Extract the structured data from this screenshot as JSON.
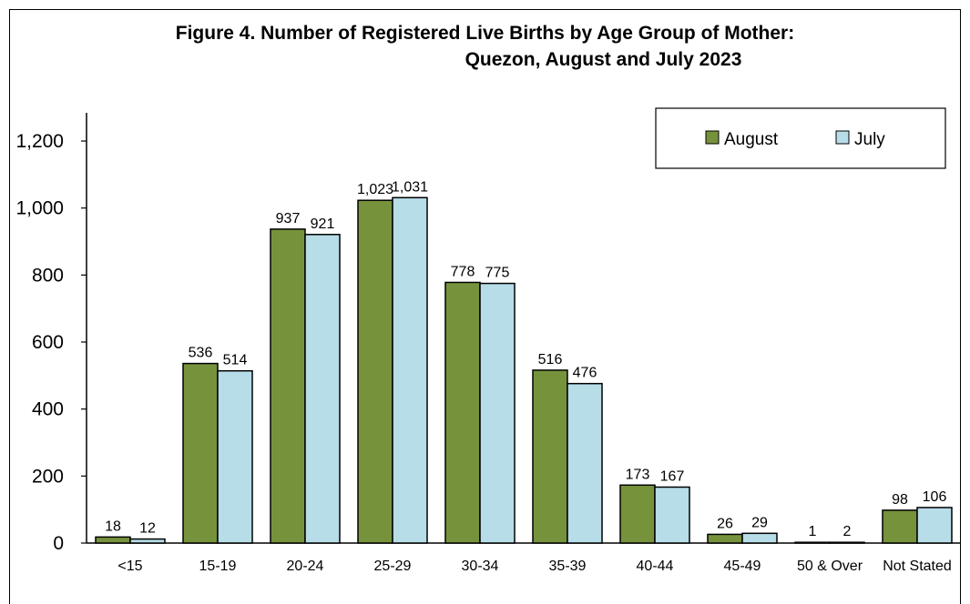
{
  "title_line1": "Figure 4. Number of Registered Live Births by Age Group of Mother:",
  "title_line2": "Quezon, August and July 2023",
  "colors": {
    "August": "#76933c",
    "July": "#b7dde8",
    "outline": "#000000"
  },
  "chart_data": {
    "type": "bar",
    "title": "Figure 4. Number of Registered Live Births by Age Group of Mother: Quezon, August and July 2023",
    "xlabel": "",
    "ylabel": "",
    "categories": [
      "<15",
      "15-19",
      "20-24",
      "25-29",
      "30-34",
      "35-39",
      "40-44",
      "45-49",
      "50 & Over",
      "Not Stated"
    ],
    "series": [
      {
        "name": "August",
        "values": [
          18,
          536,
          937,
          1023,
          778,
          516,
          173,
          26,
          1,
          98
        ]
      },
      {
        "name": "July",
        "values": [
          12,
          514,
          921,
          1031,
          775,
          476,
          167,
          29,
          2,
          106
        ]
      }
    ],
    "data_labels": {
      "August": [
        "18",
        "536",
        "937",
        "1,023",
        "778",
        "516",
        "173",
        "26",
        "1",
        "98"
      ],
      "July": [
        "12",
        "514",
        "921",
        "1,031",
        "775",
        "476",
        "167",
        "29",
        "2",
        "106"
      ]
    },
    "yticks": [
      0,
      200,
      400,
      600,
      800,
      1000,
      1200
    ],
    "ytick_labels": [
      "0",
      "200",
      "400",
      "600",
      "800",
      "1,000",
      "1,200"
    ],
    "ylim": [
      0,
      1300
    ],
    "grid": false,
    "legend": {
      "placement": "top-right",
      "entries": [
        "August",
        "July"
      ]
    }
  }
}
